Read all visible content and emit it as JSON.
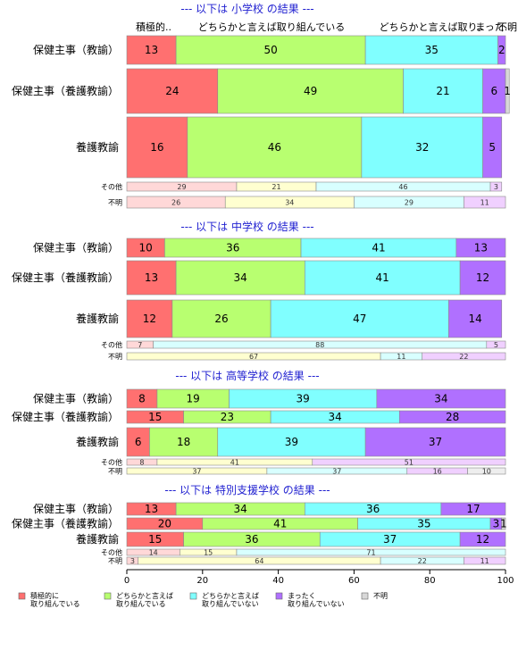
{
  "chart_data": {
    "type": "bar",
    "orientation": "horizontal-stacked-100",
    "xlim": [
      0,
      100
    ],
    "x_ticks": [
      "0",
      "20",
      "40",
      "60",
      "80",
      "100"
    ],
    "column_headers": [
      "積極的..",
      "どちらかと言えば取り組んでいる",
      "どちらかと言えば取り..",
      "まった..",
      "不明"
    ],
    "colors": {
      "main": [
        "#ff7070",
        "#b8ff70",
        "#80ffff",
        "#b070ff",
        "#d8d8d8"
      ],
      "light": [
        "#ffd8d8",
        "#ffffd0",
        "#d8ffff",
        "#f0d0ff",
        "#eeeeee"
      ]
    },
    "legend": [
      {
        "line1": "積極的に",
        "line2": "取り組んでいる"
      },
      {
        "line1": "どちらかと言えば",
        "line2": "取り組んでいる"
      },
      {
        "line1": "どちらかと言えば",
        "line2": "取り組んでいない"
      },
      {
        "line1": "まったく",
        "line2": "取り組んでいない"
      },
      {
        "line1": "不明",
        "line2": ""
      }
    ],
    "panels": [
      {
        "title": "--- 以下は 小学校 の結果 ---",
        "rows": [
          {
            "label": "保健主事（教諭）",
            "values": [
              13,
              50,
              35,
              2,
              0
            ]
          },
          {
            "label": "保健主事（養護教諭）",
            "values": [
              24,
              49,
              21,
              6,
              1
            ]
          },
          {
            "label": "養護教諭",
            "values": [
              16,
              46,
              32,
              5,
              0
            ]
          },
          {
            "label": "その他",
            "values": [
              29,
              21,
              46,
              3,
              0
            ]
          },
          {
            "label": "不明",
            "values": [
              26,
              34,
              29,
              11,
              0
            ]
          }
        ]
      },
      {
        "title": "--- 以下は 中学校 の結果 ---",
        "rows": [
          {
            "label": "保健主事（教諭）",
            "values": [
              10,
              36,
              41,
              13,
              0
            ]
          },
          {
            "label": "保健主事（養護教諭）",
            "values": [
              13,
              34,
              41,
              12,
              0
            ]
          },
          {
            "label": "養護教諭",
            "values": [
              12,
              26,
              47,
              14,
              0
            ]
          },
          {
            "label": "その他",
            "values": [
              7,
              0,
              88,
              5,
              0
            ]
          },
          {
            "label": "不明",
            "values": [
              0,
              67,
              11,
              22,
              0
            ]
          }
        ]
      },
      {
        "title": "--- 以下は 高等学校 の結果 ---",
        "rows": [
          {
            "label": "保健主事（教諭）",
            "values": [
              8,
              19,
              39,
              34,
              0
            ]
          },
          {
            "label": "保健主事（養護教諭）",
            "values": [
              15,
              23,
              34,
              28,
              0
            ]
          },
          {
            "label": "養護教諭",
            "values": [
              6,
              18,
              39,
              37,
              0
            ]
          },
          {
            "label": "その他",
            "values": [
              8,
              41,
              0,
              51,
              0
            ]
          },
          {
            "label": "不明",
            "values": [
              0,
              37,
              37,
              16,
              10
            ]
          }
        ]
      },
      {
        "title": "--- 以下は 特別支援学校 の結果 ---",
        "rows": [
          {
            "label": "保健主事（教諭）",
            "values": [
              13,
              34,
              36,
              17,
              0
            ]
          },
          {
            "label": "保健主事（養護教諭）",
            "values": [
              20,
              41,
              35,
              3,
              1
            ]
          },
          {
            "label": "養護教諭",
            "values": [
              15,
              36,
              37,
              12,
              0
            ]
          },
          {
            "label": "その他",
            "values": [
              14,
              15,
              71,
              0,
              0
            ]
          },
          {
            "label": "不明",
            "values": [
              3,
              64,
              22,
              11,
              0
            ]
          }
        ]
      }
    ]
  }
}
